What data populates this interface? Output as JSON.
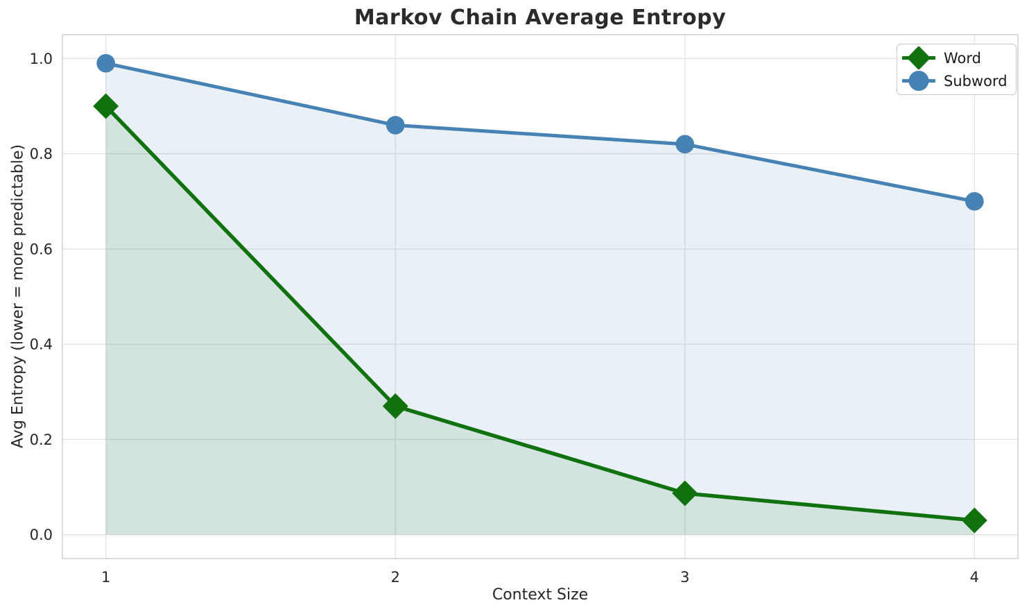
{
  "title": "Markov Chain Average Entropy",
  "axes": {
    "xlabel": "Context Size",
    "ylabel": "Avg Entropy (lower = more predictable)",
    "x_ticks": [
      "1",
      "2",
      "3",
      "4"
    ],
    "y_ticks": [
      "0.0",
      "0.2",
      "0.4",
      "0.6",
      "0.8",
      "1.0"
    ]
  },
  "legend": {
    "position": "upper right",
    "items": [
      {
        "label": "Word",
        "marker": "diamond",
        "color": "#0f720f"
      },
      {
        "label": "Subword",
        "marker": "circle",
        "color": "#4682b4"
      }
    ]
  },
  "chart_data": {
    "type": "line",
    "title": "Markov Chain Average Entropy",
    "xlabel": "Context Size",
    "ylabel": "Avg Entropy (lower = more predictable)",
    "x": [
      1,
      2,
      3,
      4
    ],
    "series": [
      {
        "name": "Word",
        "values": [
          0.9,
          0.27,
          0.087,
          0.03
        ],
        "color": "#0f720f",
        "marker": "diamond",
        "line_width": 5.5,
        "area_fill": true,
        "fill_opacity": 0.1
      },
      {
        "name": "Subword",
        "values": [
          0.99,
          0.86,
          0.82,
          0.7
        ],
        "color": "#4682b4",
        "marker": "circle",
        "line_width": 5.0,
        "area_fill": true,
        "fill_opacity": 0.12
      }
    ],
    "xlim": [
      0.85,
      4.15
    ],
    "ylim": [
      -0.05,
      1.05
    ],
    "fill_baseline": 0,
    "grid": true,
    "grid_color": "#e2e2e2",
    "spine_color": "#cccccc",
    "tick_text_color": "#262626",
    "title_color": "#2b2b2b",
    "background_color": "#ffffff",
    "legend_position": "upper right"
  }
}
